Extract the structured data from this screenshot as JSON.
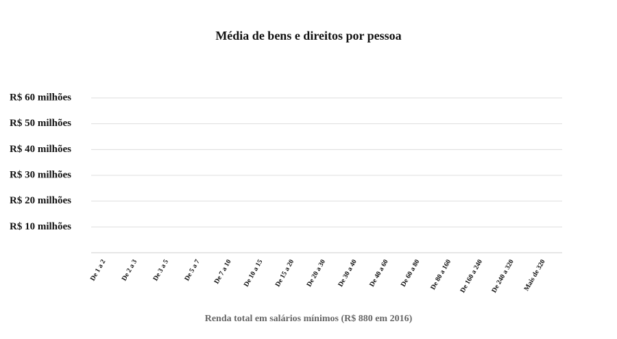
{
  "chart_data": {
    "type": "bar",
    "title": "Média de bens e direitos por pessoa",
    "x_label": "Renda total em salários mínimos (R$ 880 em 2016)",
    "categories": [
      "De 1 a 2",
      "De 2 a 3",
      "De 3 a 5",
      "De 5 a 7",
      "De 7 a 10",
      "De 10 a 15",
      "De 15 a 20",
      "De 20 a 30",
      "De 30 a 40",
      "De 40 a 60",
      "De 60 a 80",
      "De 80 a 160",
      "De 160 a 240",
      "De 240 a 320",
      "Mais de 320"
    ],
    "ylim": [
      0,
      60000000
    ],
    "yticks": [
      {
        "value": 10000000,
        "label": "R$ 10 milhões"
      },
      {
        "value": 20000000,
        "label": "R$ 20 milhões"
      },
      {
        "value": 30000000,
        "label": "R$ 30 milhões"
      },
      {
        "value": 40000000,
        "label": "R$ 40 milhões"
      },
      {
        "value": 50000000,
        "label": "R$ 50 milhões"
      },
      {
        "value": 60000000,
        "label": "R$ 60 milhões"
      }
    ],
    "grid": true
  }
}
